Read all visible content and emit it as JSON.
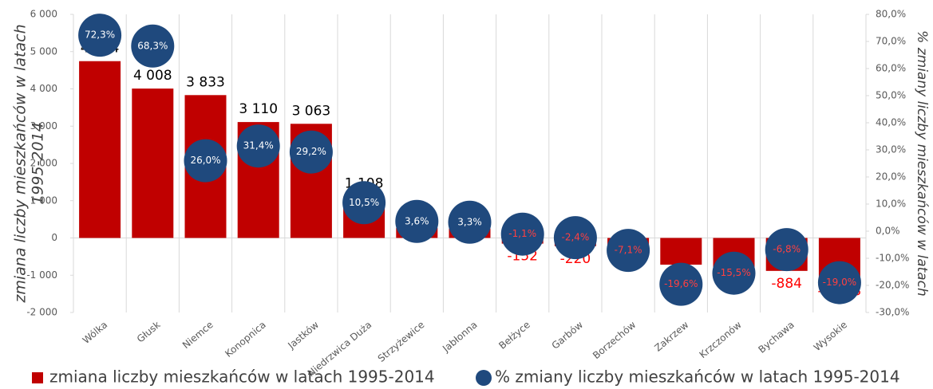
{
  "chart_data": {
    "type": "bar",
    "categories": [
      "Wólka",
      "Głusk",
      "Niemce",
      "Konopnica",
      "Jastków",
      "Niedrzwica Duża",
      "Strzyżewice",
      "Jabłonna",
      "Bełżyce",
      "Garbów",
      "Borzechów",
      "Zakrzew",
      "Krzczonów",
      "Bychawa",
      "Wysokie"
    ],
    "series": [
      {
        "name": "zmiana liczby mieszkańców w latach 1995-2014",
        "type": "bar",
        "color": "#c00000",
        "values": [
          4744,
          4008,
          3833,
          3110,
          3063,
          1108,
          274,
          254,
          -152,
          -220,
          -293,
          -717,
          -847,
          -884,
          -1093
        ],
        "value_labels": [
          "4 744",
          "4 008",
          "3 833",
          "3 110",
          "3 063",
          "1 108",
          "274",
          "254",
          "-152",
          "-220",
          "-293",
          "-717",
          "-847",
          "-884",
          "-1 093"
        ]
      },
      {
        "name": "% zmiany liczby mieszkańców w latach 1995-2014",
        "type": "scatter",
        "axis": "y2",
        "color": "#1f497d",
        "values": [
          72.3,
          68.3,
          26.0,
          31.4,
          29.2,
          10.5,
          3.6,
          3.3,
          -1.1,
          -2.4,
          -7.1,
          -19.6,
          -15.5,
          -6.8,
          -19.0
        ],
        "value_labels": [
          "72,3%",
          "68,3%",
          "26,0%",
          "31,4%",
          "29,2%",
          "10,5%",
          "3,6%",
          "3,3%",
          "-1,1%",
          "-2,4%",
          "-7,1%",
          "-19,6%",
          "-15,5%",
          "-6,8%",
          "-19,0%"
        ]
      }
    ],
    "y_label": [
      "zmiana liczby mieszkańców w latach",
      "1995-2014"
    ],
    "y2_label": [
      "% zmiany liczby mieszkańców w latach",
      "1995-2014"
    ],
    "ylim": [
      -2000,
      6000
    ],
    "yticks": [
      {
        "value": -2000,
        "label": "-2 000"
      },
      {
        "value": -1000,
        "label": "-1 000"
      },
      0,
      {
        "value": 1000,
        "label": "1 000"
      },
      {
        "value": 2000,
        "label": "2 000"
      },
      {
        "value": 3000,
        "label": "3 000"
      },
      {
        "value": 4000,
        "label": "4 000"
      },
      {
        "value": 5000,
        "label": "5 000"
      },
      {
        "value": 6000,
        "label": "6 000"
      }
    ],
    "y2lim": [
      -30,
      80
    ],
    "y2ticks": [
      {
        "value": -30,
        "label": "-30,0%"
      },
      {
        "value": -20,
        "label": "-20,0%"
      },
      {
        "value": -10,
        "label": "-10,0%"
      },
      {
        "value": 0,
        "label": "0,0%"
      },
      {
        "value": 10,
        "label": "10,0%"
      },
      {
        "value": 20,
        "label": "20,0%"
      },
      {
        "value": 30,
        "label": "30,0%"
      },
      {
        "value": 40,
        "label": "40,0%"
      },
      {
        "value": 50,
        "label": "50,0%"
      },
      {
        "value": 60,
        "label": "60,0%"
      },
      {
        "value": 70,
        "label": "70,0%"
      },
      {
        "value": 80,
        "label": "80,0%"
      }
    ],
    "legend": "bottom"
  }
}
